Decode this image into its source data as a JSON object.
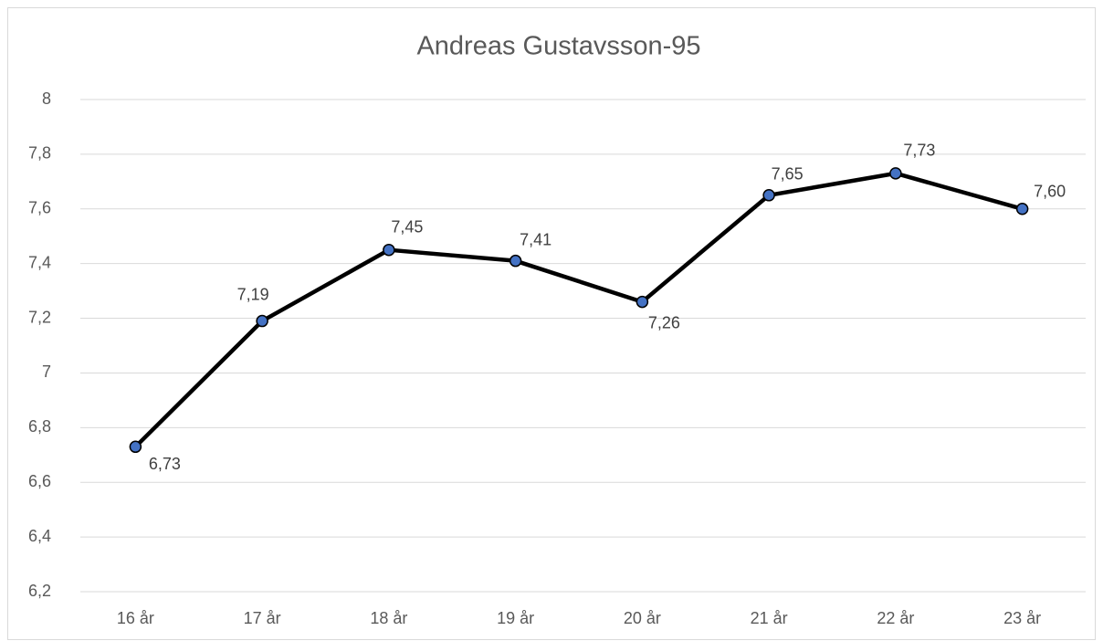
{
  "chart_data": {
    "type": "line",
    "title": "Andreas Gustavsson-95",
    "categories": [
      "16 år",
      "17 år",
      "18 år",
      "19 år",
      "20 år",
      "21 år",
      "22 år",
      "23 år"
    ],
    "series": [
      {
        "color": "#000000",
        "marker_color": "#4472c4",
        "values": [
          6.73,
          7.19,
          7.45,
          7.41,
          7.26,
          7.65,
          7.73,
          7.6
        ],
        "value_labels": [
          "6,73",
          "7,19",
          "7,45",
          "7,41",
          "7,26",
          "7,65",
          "7,73",
          "7,60"
        ]
      }
    ],
    "ylim": [
      6.2,
      8
    ],
    "yticks": [
      {
        "value": 6.2,
        "label": "6,2"
      },
      {
        "value": 6.4,
        "label": "6,4"
      },
      {
        "value": 6.6,
        "label": "6,6"
      },
      {
        "value": 6.8,
        "label": "6,8"
      },
      7,
      {
        "value": 7.2,
        "label": "7,2"
      },
      {
        "value": 7.4,
        "label": "7,4"
      },
      {
        "value": 7.6,
        "label": "7,6"
      },
      {
        "value": 7.8,
        "label": "7,8"
      },
      8
    ],
    "grid": true
  }
}
